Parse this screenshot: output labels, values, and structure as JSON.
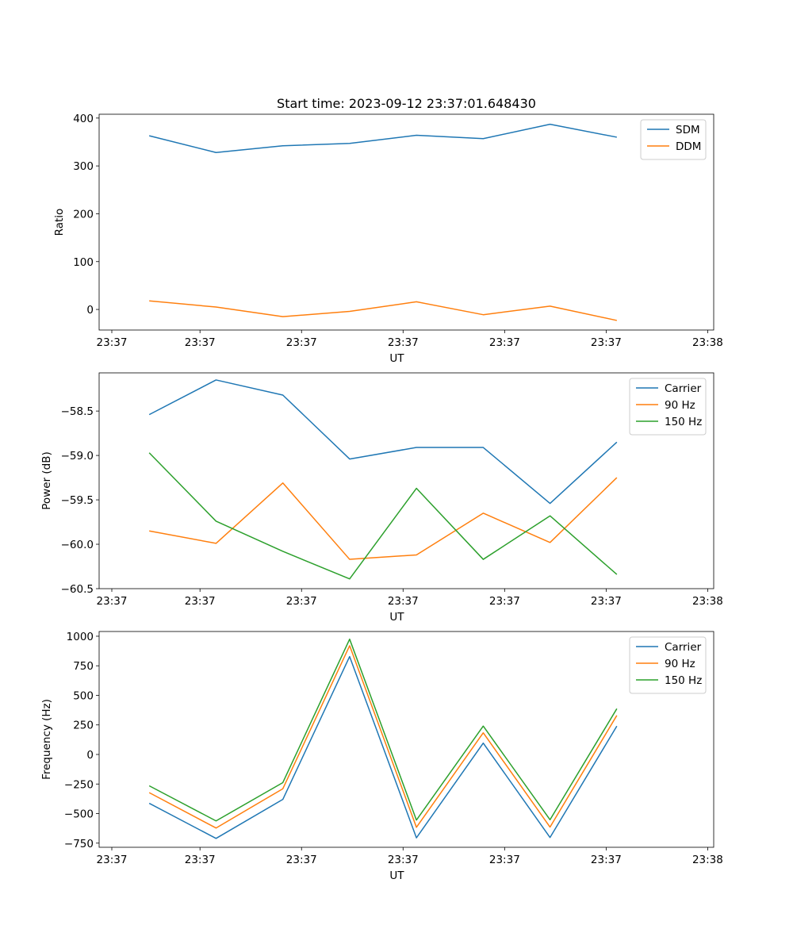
{
  "figure_title": "Start time: 2023-09-12 23:37:01.648430",
  "colors": {
    "c0": "#1f77b4",
    "c1": "#ff7f0e",
    "c2": "#2ca02c"
  },
  "chart_data": [
    {
      "type": "line",
      "title": "Start time: 2023-09-12 23:37:01.648430",
      "xlabel": "UT",
      "ylabel": "Ratio",
      "x_tick_labels": [
        "23:37",
        "23:37",
        "23:37",
        "23:37",
        "23:37",
        "23:37",
        "23:38"
      ],
      "x_index": [
        0,
        1,
        2,
        3,
        4,
        5,
        6,
        7
      ],
      "xlim": [
        -0.75,
        8.45
      ],
      "ylim": [
        -43,
        408
      ],
      "y_ticks": [
        0,
        100,
        200,
        300,
        400
      ],
      "y_tick_labels": [
        "0",
        "100",
        "200",
        "300",
        "400"
      ],
      "legend_position": "top-right",
      "series": [
        {
          "name": "SDM",
          "color": "#1f77b4",
          "values": [
            363,
            328,
            342,
            347,
            364,
            357,
            387,
            360
          ]
        },
        {
          "name": "DDM",
          "color": "#ff7f0e",
          "values": [
            18,
            5,
            -15,
            -4,
            16,
            -11,
            7,
            -23
          ]
        }
      ]
    },
    {
      "type": "line",
      "xlabel": "UT",
      "ylabel": "Power (dB)",
      "x_tick_labels": [
        "23:37",
        "23:37",
        "23:37",
        "23:37",
        "23:37",
        "23:37",
        "23:38"
      ],
      "x_index": [
        0,
        1,
        2,
        3,
        4,
        5,
        6,
        7
      ],
      "xlim": [
        -0.75,
        8.45
      ],
      "ylim": [
        -60.5,
        -58.07
      ],
      "y_ticks": [
        -60.5,
        -60.0,
        -59.5,
        -59.0,
        -58.5
      ],
      "y_tick_labels": [
        "−60.5",
        "−60.0",
        "−59.5",
        "−59.0",
        "−58.5"
      ],
      "legend_position": "top-right",
      "series": [
        {
          "name": "Carrier",
          "color": "#1f77b4",
          "values": [
            -58.54,
            -58.15,
            -58.32,
            -59.04,
            -58.91,
            -58.91,
            -59.54,
            -58.85
          ]
        },
        {
          "name": "90 Hz",
          "color": "#ff7f0e",
          "values": [
            -59.85,
            -59.99,
            -59.31,
            -60.17,
            -60.12,
            -59.65,
            -59.98,
            -59.25
          ]
        },
        {
          "name": "150 Hz",
          "color": "#2ca02c",
          "values": [
            -58.97,
            -59.74,
            -60.08,
            -60.39,
            -59.37,
            -60.17,
            -59.68,
            -60.34
          ]
        }
      ]
    },
    {
      "type": "line",
      "xlabel": "UT",
      "ylabel": "Frequency (Hz)",
      "x_tick_labels": [
        "23:37",
        "23:37",
        "23:37",
        "23:37",
        "23:37",
        "23:37",
        "23:38"
      ],
      "x_index": [
        0,
        1,
        2,
        3,
        4,
        5,
        6,
        7
      ],
      "xlim": [
        -0.75,
        8.45
      ],
      "ylim": [
        -785,
        1040
      ],
      "y_ticks": [
        -750,
        -500,
        -250,
        0,
        250,
        500,
        750,
        1000
      ],
      "y_tick_labels": [
        "−750",
        "−500",
        "−250",
        "0",
        "250",
        "500",
        "750",
        "1000"
      ],
      "legend_position": "top-right",
      "series": [
        {
          "name": "Carrier",
          "color": "#1f77b4",
          "values": [
            -413,
            -710,
            -380,
            828,
            -705,
            96,
            -702,
            240
          ]
        },
        {
          "name": "90 Hz",
          "color": "#ff7f0e",
          "values": [
            -323,
            -622,
            -290,
            920,
            -616,
            183,
            -614,
            330
          ]
        },
        {
          "name": "150 Hz",
          "color": "#2ca02c",
          "values": [
            -265,
            -562,
            -238,
            975,
            -555,
            240,
            -552,
            387
          ]
        }
      ]
    }
  ]
}
